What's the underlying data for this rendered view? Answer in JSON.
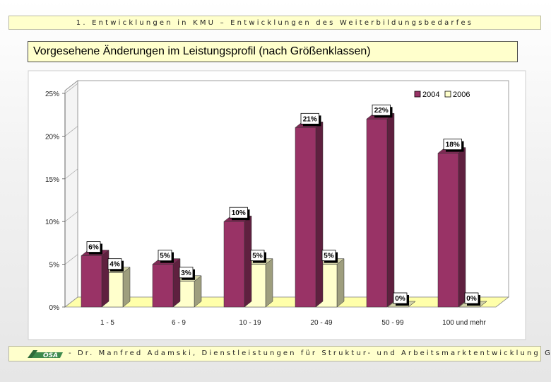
{
  "header": {
    "banner_text": "1. Entwicklungen in KMU – Entwicklungen des Weiterbildungsbedarfes"
  },
  "chart_title": "Vorgesehene Änderungen im Leistungsprofil (nach Größenklassen)",
  "footer": {
    "text": "- Dr. Manfred Adamski, Dienstleistungen für Struktur- und Arbeitsmarktentwicklung GmbH",
    "logo_text": "OSA"
  },
  "colors": {
    "series_2004": "#993366",
    "series_2006": "#ffffcc",
    "floor": "#ffffaa",
    "plot_bg": "#ffffff"
  },
  "chart_data": {
    "type": "bar",
    "title": "Vorgesehene Änderungen im Leistungsprofil (nach Größenklassen)",
    "categories": [
      "1 - 5",
      "6 - 9",
      "10 - 19",
      "20 - 49",
      "50 - 99",
      "100 und mehr"
    ],
    "series": [
      {
        "name": "2004",
        "values": [
          6,
          5,
          10,
          21,
          22,
          18
        ],
        "labels": [
          "6%",
          "5%",
          "10%",
          "21%",
          "22%",
          "18%"
        ]
      },
      {
        "name": "2006",
        "values": [
          4,
          3,
          5,
          5,
          0,
          0
        ],
        "labels": [
          "4%",
          "3%",
          "5%",
          "5%",
          "0%",
          "0%"
        ]
      }
    ],
    "yticks": [
      "0%",
      "5%",
      "10%",
      "15%",
      "20%",
      "25%"
    ],
    "ylim": [
      0,
      25
    ],
    "legend_position": "top-right",
    "grid": false
  }
}
